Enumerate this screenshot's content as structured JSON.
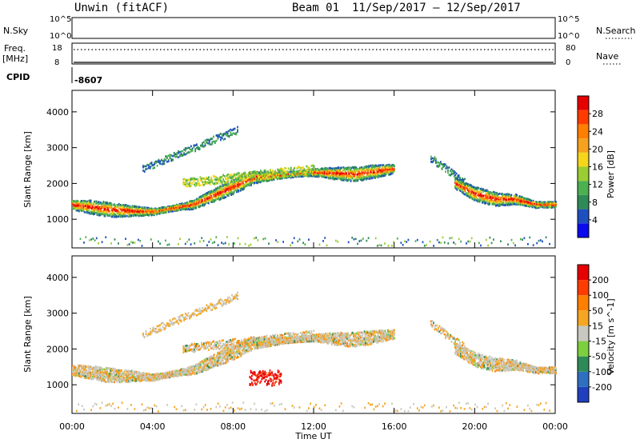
{
  "header": {
    "station": "Unwin (fitACF)",
    "beam": "Beam 01",
    "date_range": "11/Sep/2017 – 12/Sep/2017"
  },
  "top_panels": {
    "nsky_label": "N.Sky",
    "nsky_ticks": [
      "10^5",
      "10^0"
    ],
    "nsky_right_ticks": [
      "10^5",
      "10^0"
    ],
    "nsearch_label": "N.Search",
    "freq_label_line1": "Freq.",
    "freq_label_line2": "[MHz]",
    "freq_ticks": [
      "18",
      "8"
    ],
    "nave_ticks": [
      "80",
      "0"
    ],
    "nave_label": "Nave",
    "cpid_label": "CPID",
    "cpid_value": "-8607"
  },
  "chart_data": [
    {
      "type": "heatmap",
      "panel": "power",
      "ylabel": "Slant Range [km]",
      "xlabel": "",
      "ylim": [
        200,
        4600
      ],
      "yticks": [
        "4000",
        "3000",
        "2000",
        "1000"
      ],
      "ytick_values": [
        4000,
        3000,
        2000,
        1000
      ],
      "colorbar_label": "Power [dB]",
      "colorbar_ticks": [
        "28",
        "24",
        "20",
        "16",
        "12",
        "8",
        "4"
      ],
      "colors": [
        "#0a0aee",
        "#1e4fbf",
        "#2e8b57",
        "#4caf50",
        "#9acd32",
        "#f5d61a",
        "#f6a21e",
        "#ff7f00",
        "#ff3c00",
        "#e60000"
      ],
      "features": [
        {
          "name": "main-band",
          "t": [
            0,
            2,
            4,
            6,
            8,
            9,
            10,
            12,
            14,
            16
          ],
          "range": [
            1400,
            1250,
            1200,
            1400,
            1900,
            2150,
            2200,
            2300,
            2250,
            2400
          ]
        },
        {
          "name": "evening-band",
          "t": [
            19,
            20,
            21,
            22,
            23,
            24
          ],
          "range": [
            2000,
            1700,
            1550,
            1550,
            1400,
            1400
          ]
        }
      ]
    },
    {
      "type": "heatmap",
      "panel": "velocity",
      "ylabel": "Slant Range [km]",
      "xlabel": "Time UT",
      "xlim": [
        0,
        24
      ],
      "xticks": [
        "00:00",
        "04:00",
        "08:00",
        "12:00",
        "16:00",
        "20:00",
        "00:00"
      ],
      "ylim": [
        200,
        4600
      ],
      "yticks": [
        "4000",
        "3000",
        "2000",
        "1000"
      ],
      "ytick_values": [
        4000,
        3000,
        2000,
        1000
      ],
      "colorbar_label": "Velocity [m s^-1]",
      "colorbar_ticks": [
        "200",
        "100",
        "50",
        "15",
        "-15",
        "-50",
        "-100",
        "-200"
      ],
      "colors": [
        "#1f3fbf",
        "#2e6fbf",
        "#2e8b57",
        "#7ccf3f",
        "#c8c8c0",
        "#f5a623",
        "#ff7f00",
        "#ff3c00",
        "#e60000"
      ]
    }
  ]
}
